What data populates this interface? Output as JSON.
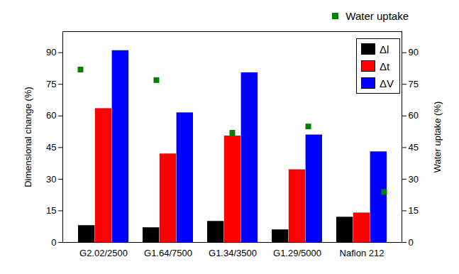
{
  "chart_data": {
    "type": "bar",
    "categories": [
      "G2.02/2500",
      "G1.64/7500",
      "G1.34/3500",
      "G1.29/5000",
      "Nafion 212"
    ],
    "series": [
      {
        "name": "Δl",
        "color": "#000000",
        "values": [
          8,
          7,
          10,
          6,
          12
        ]
      },
      {
        "name": "Δt",
        "color": "#ff0000",
        "values": [
          63.5,
          42,
          50.5,
          34.5,
          14
        ]
      },
      {
        "name": "ΔV",
        "color": "#0000ff",
        "values": [
          91,
          61.5,
          80.5,
          51,
          43
        ]
      },
      {
        "name": "Water uptake",
        "color": "#008000",
        "type": "scatter",
        "marker": "square",
        "axis": "y2",
        "values": [
          82,
          77,
          52,
          55,
          24
        ]
      }
    ],
    "y_label": "Dimensional change (%)",
    "y2_label": "Water uptake (%)",
    "ylim": [
      0,
      100
    ],
    "yticks": [
      0,
      15,
      30,
      45,
      60,
      75,
      90
    ],
    "y2lim": [
      0,
      100
    ],
    "y2ticks": [
      0,
      15,
      30,
      45,
      60,
      75,
      90
    ],
    "grid": false,
    "legend": "upper right"
  }
}
